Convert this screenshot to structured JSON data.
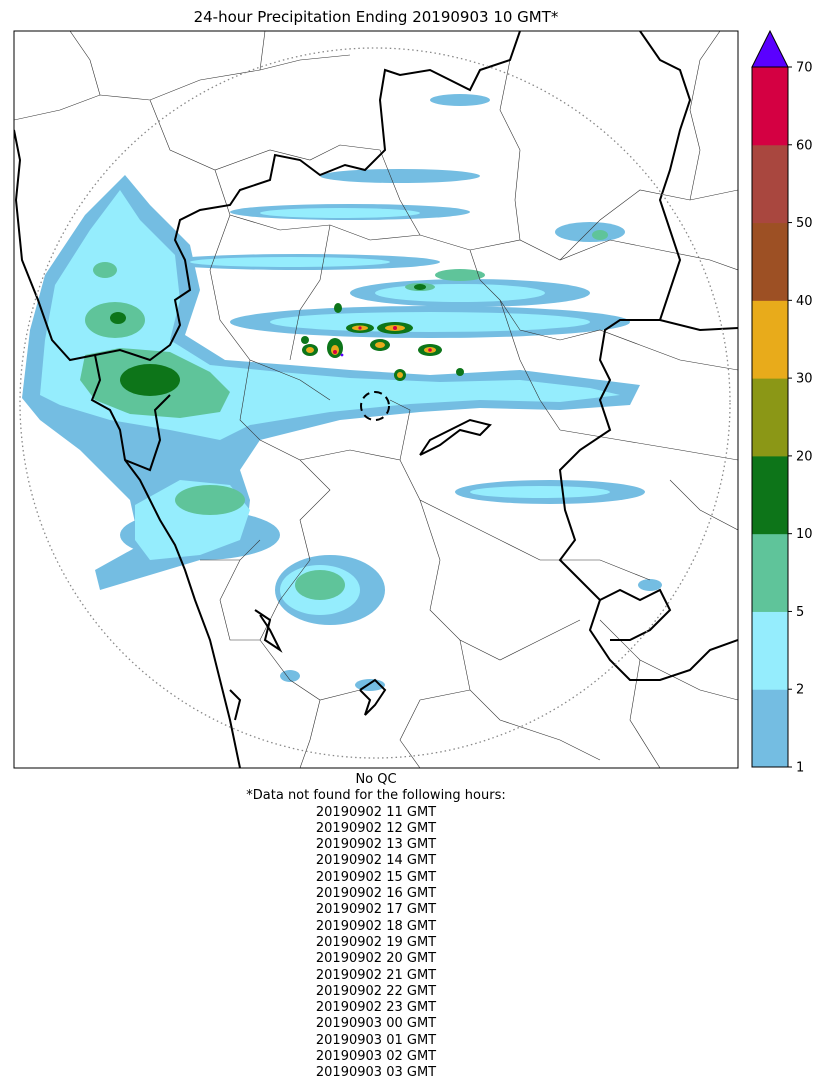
{
  "title": "24-hour Precipitation Ending 20190903 10 GMT*",
  "colorbar": {
    "levels": [
      1,
      2,
      5,
      10,
      20,
      30,
      40,
      50,
      60,
      70
    ],
    "tick_labels": [
      "1",
      "2",
      "5",
      "10",
      "20",
      "30",
      "40",
      "50",
      "60",
      "70"
    ],
    "colors": [
      "#74bde2",
      "#95edfd",
      "#5fc49a",
      "#0d7519",
      "#8b9716",
      "#e8ab1b",
      "#9d5024",
      "#a9473f",
      "#d40042"
    ],
    "extend_color": "#5a00ff"
  },
  "qc_label": "No QC",
  "missing_note": "*Data not found for the following hours:",
  "missing_hours": [
    "20190902 11 GMT",
    "20190902 12 GMT",
    "20190902 13 GMT",
    "20190902 14 GMT",
    "20190902 15 GMT",
    "20190902 16 GMT",
    "20190902 17 GMT",
    "20190902 18 GMT",
    "20190902 19 GMT",
    "20190902 20 GMT",
    "20190902 21 GMT",
    "20190902 22 GMT",
    "20190902 23 GMT",
    "20190903 00 GMT",
    "20190903 01 GMT",
    "20190903 02 GMT",
    "20190903 03 GMT"
  ]
}
